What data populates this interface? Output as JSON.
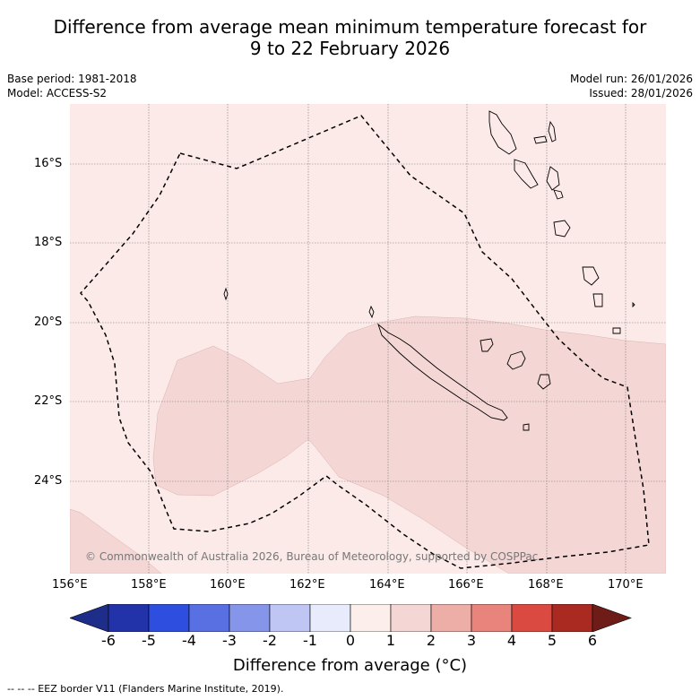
{
  "title": {
    "line1": "Difference from average mean minimum temperature forecast for",
    "line2": "9 to 22 February 2026"
  },
  "meta": {
    "base_period": "Base period: 1981-2018",
    "model": "Model: ACCESS-S2",
    "model_run": "Model run: 26/01/2026",
    "issued": "Issued: 28/01/2026"
  },
  "map": {
    "latitude_labels": [
      "16°S",
      "18°S",
      "20°S",
      "22°S",
      "24°S"
    ],
    "longitude_labels": [
      "156°E",
      "158°E",
      "160°E",
      "162°E",
      "164°E",
      "166°E",
      "168°E",
      "170°E"
    ],
    "copyright": "© Commonwealth of Australia 2026, Bureau of Meteorology, supported by COSPPac",
    "fill_colors": {
      "zero_to_one": "#fbeae8",
      "one_to_two": "#f4d6d5"
    }
  },
  "colorbar": {
    "tick_labels": [
      "-6",
      "-5",
      "-4",
      "-3",
      "-2",
      "-1",
      "0",
      "1",
      "2",
      "3",
      "4",
      "5",
      "6"
    ],
    "colors": [
      "#1f2d8a",
      "#2232a8",
      "#2e4ee0",
      "#5870e2",
      "#8595e9",
      "#bfc6f3",
      "#e8ebfb",
      "#fcefeb",
      "#f4d6d5",
      "#eeaea8",
      "#e8847c",
      "#db4a40",
      "#aa2a22",
      "#6e1c18"
    ],
    "title": "Difference from average (°C)"
  },
  "footnote": "--  --  -- EEZ border V11 (Flanders Marine Institute, 2019)."
}
